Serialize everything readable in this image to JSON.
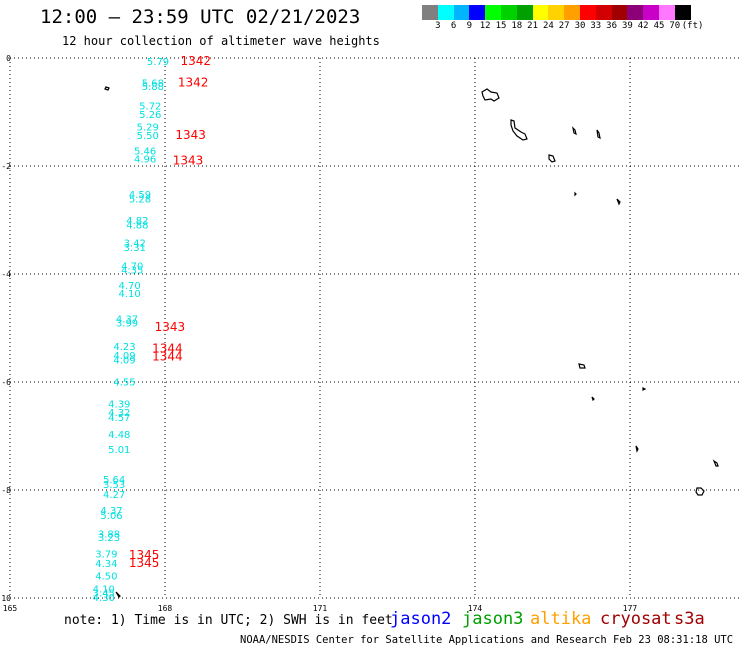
{
  "header": {
    "title": "12:00 — 23:59 UTC 02/21/2023",
    "subtitle": "12 hour collection of altimeter wave heights"
  },
  "legend": {
    "colors": [
      "#808080",
      "#00ffff",
      "#00b4ff",
      "#0000ff",
      "#00ff00",
      "#00d200",
      "#00a000",
      "#ffff00",
      "#ffd200",
      "#ffa000",
      "#ff0000",
      "#d20000",
      "#a00000",
      "#8c0078",
      "#c800c8",
      "#ff78ff",
      "#000000"
    ],
    "labels": [
      "3",
      "6",
      "9",
      "12",
      "15",
      "18",
      "21",
      "24",
      "27",
      "30",
      "33",
      "36",
      "39",
      "42",
      "45",
      "70",
      "(ft)"
    ]
  },
  "map": {
    "lon_range": [
      165,
      180
    ],
    "lat_range": [
      -10,
      0
    ],
    "x_ticks": [
      "165",
      "168",
      "171",
      "174",
      "177"
    ],
    "x_tick_values": [
      165,
      168,
      171,
      174,
      177
    ],
    "y_ticks": [
      "0",
      "-2",
      "-4",
      "-6",
      "-8",
      "-10"
    ],
    "y_tick_values": [
      0,
      -2,
      -4,
      -6,
      -8,
      -10
    ],
    "grid": "dotted",
    "observations": [
      {
        "lon": 167.65,
        "lat": -0.06,
        "text": "5.79",
        "sat": "s3a"
      },
      {
        "lon": 167.55,
        "lat": -0.45,
        "text": "5.68",
        "sat": "s3a"
      },
      {
        "lon": 167.55,
        "lat": -0.52,
        "text": "5.88",
        "sat": "s3a"
      },
      {
        "lon": 167.5,
        "lat": -0.88,
        "text": "5.72",
        "sat": "s3a"
      },
      {
        "lon": 167.5,
        "lat": -1.04,
        "text": "5.26",
        "sat": "s3a"
      },
      {
        "lon": 167.45,
        "lat": -1.27,
        "text": "5.29",
        "sat": "s3a"
      },
      {
        "lon": 167.45,
        "lat": -1.43,
        "text": "5.50",
        "sat": "s3a"
      },
      {
        "lon": 167.4,
        "lat": -1.71,
        "text": "5.46",
        "sat": "s3a"
      },
      {
        "lon": 167.4,
        "lat": -1.86,
        "text": "4.96",
        "sat": "s3a"
      },
      {
        "lon": 167.3,
        "lat": -2.52,
        "text": "4.59",
        "sat": "s3a"
      },
      {
        "lon": 167.3,
        "lat": -2.6,
        "text": "5.28",
        "sat": "s3a"
      },
      {
        "lon": 167.25,
        "lat": -3.0,
        "text": "4.82",
        "sat": "s3a"
      },
      {
        "lon": 167.25,
        "lat": -3.08,
        "text": "4.88",
        "sat": "s3a"
      },
      {
        "lon": 167.2,
        "lat": -3.42,
        "text": "3.42",
        "sat": "s3a"
      },
      {
        "lon": 167.2,
        "lat": -3.5,
        "text": "3.31",
        "sat": "s3a"
      },
      {
        "lon": 167.15,
        "lat": -3.84,
        "text": "4.70",
        "sat": "s3a"
      },
      {
        "lon": 167.15,
        "lat": -3.92,
        "text": "4.35",
        "sat": "s3a"
      },
      {
        "lon": 167.1,
        "lat": -4.2,
        "text": "4.70",
        "sat": "s3a"
      },
      {
        "lon": 167.1,
        "lat": -4.35,
        "text": "4.10",
        "sat": "s3a"
      },
      {
        "lon": 167.05,
        "lat": -4.82,
        "text": "4.37",
        "sat": "s3a"
      },
      {
        "lon": 167.05,
        "lat": -4.9,
        "text": "3.99",
        "sat": "s3a"
      },
      {
        "lon": 167.0,
        "lat": -5.33,
        "text": "4.23",
        "sat": "s3a"
      },
      {
        "lon": 167.0,
        "lat": -5.5,
        "text": "4.09",
        "sat": "s3a"
      },
      {
        "lon": 167.0,
        "lat": -5.58,
        "text": "4.09",
        "sat": "s3a"
      },
      {
        "lon": 167.0,
        "lat": -5.99,
        "text": "4.55",
        "sat": "s3a"
      },
      {
        "lon": 166.9,
        "lat": -6.4,
        "text": "4.39",
        "sat": "s3a"
      },
      {
        "lon": 166.9,
        "lat": -6.56,
        "text": "4.32",
        "sat": "s3a"
      },
      {
        "lon": 166.9,
        "lat": -6.65,
        "text": "4.57",
        "sat": "s3a"
      },
      {
        "lon": 166.9,
        "lat": -6.96,
        "text": "4.48",
        "sat": "s3a"
      },
      {
        "lon": 166.9,
        "lat": -7.24,
        "text": "5.01",
        "sat": "s3a"
      },
      {
        "lon": 166.8,
        "lat": -7.8,
        "text": "5.64",
        "sat": "s3a"
      },
      {
        "lon": 166.8,
        "lat": -7.89,
        "text": "3.53",
        "sat": "s3a"
      },
      {
        "lon": 166.8,
        "lat": -8.07,
        "text": "4.27",
        "sat": "s3a"
      },
      {
        "lon": 166.75,
        "lat": -8.37,
        "text": "4.37",
        "sat": "s3a"
      },
      {
        "lon": 166.75,
        "lat": -8.46,
        "text": "5.06",
        "sat": "s3a"
      },
      {
        "lon": 166.7,
        "lat": -8.81,
        "text": "3.88",
        "sat": "s3a"
      },
      {
        "lon": 166.7,
        "lat": -8.87,
        "text": "3.23",
        "sat": "s3a"
      },
      {
        "lon": 166.65,
        "lat": -9.18,
        "text": "3.79",
        "sat": "s3a"
      },
      {
        "lon": 166.65,
        "lat": -9.35,
        "text": "4.34",
        "sat": "s3a"
      },
      {
        "lon": 166.65,
        "lat": -9.58,
        "text": "4.50",
        "sat": "s3a"
      },
      {
        "lon": 166.6,
        "lat": -9.82,
        "text": "4.10",
        "sat": "s3a"
      },
      {
        "lon": 166.6,
        "lat": -9.9,
        "text": "3.45",
        "sat": "s3a"
      },
      {
        "lon": 166.6,
        "lat": -9.98,
        "text": "4.30",
        "sat": "s3a"
      }
    ],
    "times": [
      {
        "lon": 168.3,
        "lat": -0.06,
        "text": "1342",
        "sat": "cryosat"
      },
      {
        "lon": 168.25,
        "lat": -0.45,
        "text": "1342",
        "sat": "cryosat"
      },
      {
        "lon": 168.2,
        "lat": -1.43,
        "text": "1343",
        "sat": "cryosat"
      },
      {
        "lon": 168.15,
        "lat": -1.9,
        "text": "1343",
        "sat": "cryosat"
      },
      {
        "lon": 167.8,
        "lat": -4.98,
        "text": "1343",
        "sat": "cryosat"
      },
      {
        "lon": 167.75,
        "lat": -5.38,
        "text": "1344",
        "sat": "cryosat"
      },
      {
        "lon": 167.75,
        "lat": -5.53,
        "text": "1344",
        "sat": "cryosat"
      },
      {
        "lon": 167.3,
        "lat": -9.2,
        "text": "1345",
        "sat": "cryosat"
      },
      {
        "lon": 167.3,
        "lat": -9.35,
        "text": "1345",
        "sat": "cryosat"
      }
    ]
  },
  "footer": {
    "note": "note: 1) Time is in UTC; 2) SWH is in feet",
    "satellites": [
      {
        "name": "jason2",
        "color": "#0000ff"
      },
      {
        "name": "jason3",
        "color": "#00a000"
      },
      {
        "name": "altika",
        "color": "#ffa000"
      },
      {
        "name": "cryosat",
        "color": "#a00000"
      },
      {
        "name": "s3a",
        "color": "#a00000"
      }
    ],
    "credit": "NOAA/NESDIS Center for Satellite Applications and Research   Feb 23 08:31:18 UTC 2023"
  },
  "colors": {
    "s3a_label": "#00e0e0",
    "time_label": "#ff0000",
    "grid": "#000000"
  }
}
